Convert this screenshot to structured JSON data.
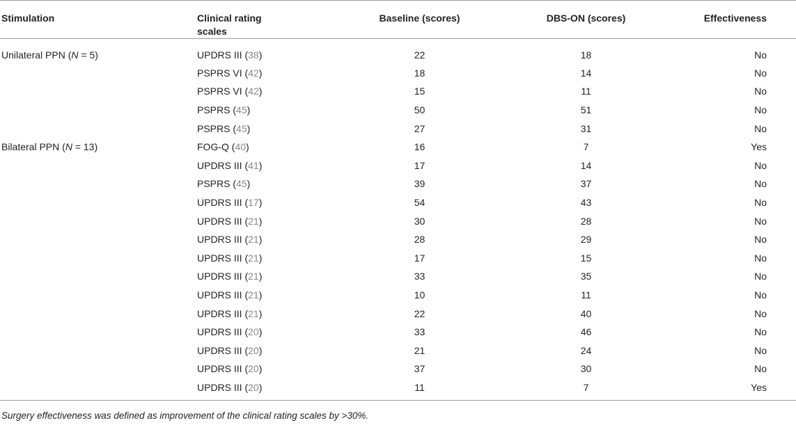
{
  "headers": {
    "stimulation": "Stimulation",
    "scales_line1": "Clinical rating",
    "scales_line2": "scales",
    "baseline": "Baseline (scores)",
    "dbs": "DBS-ON (scores)",
    "effectiveness": "Effectiveness"
  },
  "groups": [
    {
      "label_pre": "Unilateral PPN (",
      "label_n": "N",
      "label_post": " = 5)"
    },
    {
      "label_pre": "Bilateral PPN (",
      "label_n": "N",
      "label_post": " = 13)"
    }
  ],
  "rows": [
    {
      "scale": "UPDRS III",
      "ref": "38",
      "baseline": "22",
      "dbs": "18",
      "effective": "No"
    },
    {
      "scale": "PSPRS VI",
      "ref": "42",
      "baseline": "18",
      "dbs": "14",
      "effective": "No"
    },
    {
      "scale": "PSPRS VI",
      "ref": "42",
      "baseline": "15",
      "dbs": "11",
      "effective": "No"
    },
    {
      "scale": "PSPRS",
      "ref": "45",
      "baseline": "50",
      "dbs": "51",
      "effective": "No"
    },
    {
      "scale": "PSPRS",
      "ref": "45",
      "baseline": "27",
      "dbs": "31",
      "effective": "No"
    },
    {
      "scale": "FOG-Q",
      "ref": "40",
      "baseline": "16",
      "dbs": "7",
      "effective": "Yes"
    },
    {
      "scale": "UPDRS III",
      "ref": "41",
      "baseline": "17",
      "dbs": "14",
      "effective": "No"
    },
    {
      "scale": "PSPRS",
      "ref": "45",
      "baseline": "39",
      "dbs": "37",
      "effective": "No"
    },
    {
      "scale": "UPDRS III",
      "ref": "17",
      "baseline": "54",
      "dbs": "43",
      "effective": "No"
    },
    {
      "scale": "UPDRS III",
      "ref": "21",
      "baseline": "30",
      "dbs": "28",
      "effective": "No"
    },
    {
      "scale": "UPDRS III",
      "ref": "21",
      "baseline": "28",
      "dbs": "29",
      "effective": "No"
    },
    {
      "scale": "UPDRS III",
      "ref": "21",
      "baseline": "17",
      "dbs": "15",
      "effective": "No"
    },
    {
      "scale": "UPDRS III",
      "ref": "21",
      "baseline": "33",
      "dbs": "35",
      "effective": "No"
    },
    {
      "scale": "UPDRS III",
      "ref": "21",
      "baseline": "10",
      "dbs": "11",
      "effective": "No"
    },
    {
      "scale": "UPDRS III",
      "ref": "21",
      "baseline": "22",
      "dbs": "40",
      "effective": "No"
    },
    {
      "scale": "UPDRS III",
      "ref": "20",
      "baseline": "33",
      "dbs": "46",
      "effective": "No"
    },
    {
      "scale": "UPDRS III",
      "ref": "20",
      "baseline": "21",
      "dbs": "24",
      "effective": "No"
    },
    {
      "scale": "UPDRS III",
      "ref": "20",
      "baseline": "37",
      "dbs": "30",
      "effective": "No"
    },
    {
      "scale": "UPDRS III",
      "ref": "20",
      "baseline": "11",
      "dbs": "7",
      "effective": "Yes"
    }
  ],
  "footnote": "Surgery effectiveness was defined as improvement of the clinical rating scales by >30%."
}
